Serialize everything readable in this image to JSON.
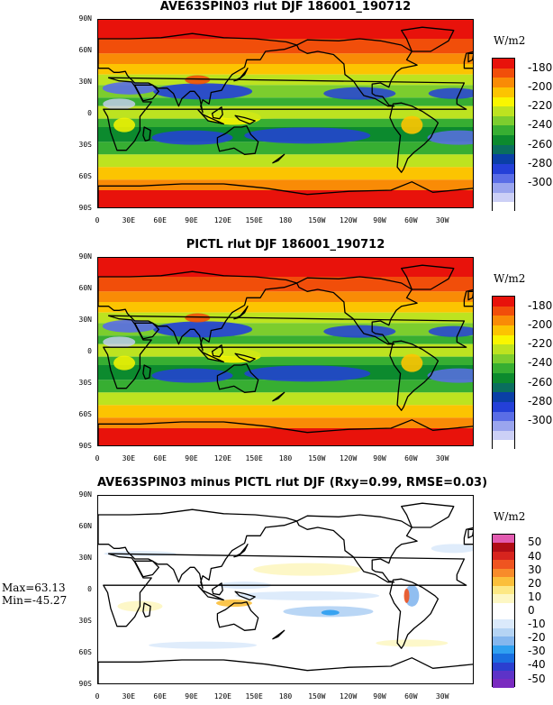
{
  "panels": [
    {
      "title": "AVE63SPIN03 rlut DJF 186001_190712",
      "units": "W/m2",
      "colorbar": {
        "colors": [
          "#e8120b",
          "#f14e0a",
          "#f98b06",
          "#fcc401",
          "#f9f600",
          "#bde320",
          "#7ccd2e",
          "#37ae32",
          "#0c8a2e",
          "#0a6e5e",
          "#0a3fa6",
          "#2440d8",
          "#5a6de6",
          "#9aa5ee",
          "#ccd0f6",
          "#ffffff"
        ],
        "labels": [
          "-180",
          "-200",
          "-220",
          "-240",
          "-260",
          "-280",
          "-300"
        ]
      }
    },
    {
      "title": "PICTL rlut DJF 186001_190712",
      "units": "W/m2",
      "colorbar": {
        "colors": [
          "#e8120b",
          "#f14e0a",
          "#f98b06",
          "#fcc401",
          "#f9f600",
          "#bde320",
          "#7ccd2e",
          "#37ae32",
          "#0c8a2e",
          "#0a6e5e",
          "#0a3fa6",
          "#2440d8",
          "#5a6de6",
          "#9aa5ee",
          "#ccd0f6",
          "#ffffff"
        ],
        "labels": [
          "-180",
          "-200",
          "-220",
          "-240",
          "-260",
          "-280",
          "-300"
        ]
      }
    },
    {
      "title": "AVE63SPIN03 minus PICTL rlut DJF (Rxy=0.99, RMSE=0.03)",
      "units": "W/m2",
      "colorbar": {
        "colors": [
          "#e25bb0",
          "#b00d16",
          "#d7241e",
          "#ef5420",
          "#f88b2a",
          "#fbbf3a",
          "#fde884",
          "#fdf7c4",
          "#ffffff",
          "#ffffff",
          "#dbeafb",
          "#b5d4f4",
          "#85b7ee",
          "#30a0f0",
          "#1a6fe0",
          "#2b3fcf",
          "#5d33c8",
          "#7a2bc0"
        ],
        "labels": [
          "50",
          "40",
          "30",
          "20",
          "10",
          "0",
          "-10",
          "-20",
          "-30",
          "-40",
          "-50"
        ]
      },
      "stats": {
        "max": "Max=63.13",
        "min": "Min=-45.27"
      }
    }
  ],
  "axes": {
    "lat_labels": [
      "90N",
      "60N",
      "30N",
      "0",
      "30S",
      "60S",
      "90S"
    ],
    "lon_labels": [
      "0",
      "30E",
      "60E",
      "90E",
      "120E",
      "150E",
      "180",
      "150W",
      "120W",
      "90W",
      "60W",
      "30W"
    ]
  }
}
